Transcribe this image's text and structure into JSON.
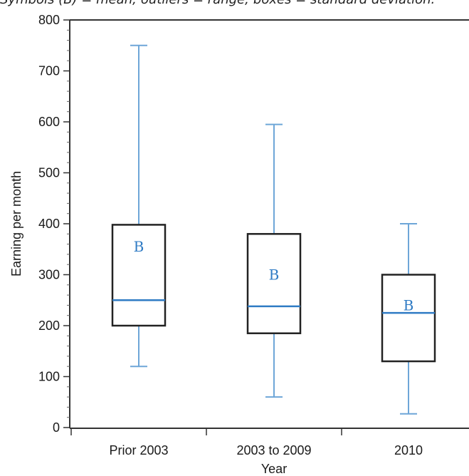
{
  "caption": "Symbols (B) = mean; outliers = range; boxes = standard deviation.",
  "colors": {
    "whisker": "#6ea6d8",
    "median": "#2f7bc4",
    "box": "#222222",
    "marker": "#2f7bc4"
  },
  "chart_data": {
    "type": "box",
    "xlabel": "Year",
    "ylabel": "Earning per month",
    "ylim": [
      0,
      800
    ],
    "yticks": [
      0,
      100,
      200,
      300,
      400,
      500,
      600,
      700,
      800
    ],
    "grid": false,
    "mean_symbol": "B",
    "categories": [
      "Prior 2003",
      "2003 to 2009",
      "2010"
    ],
    "boxes": [
      {
        "category": "Prior 2003",
        "min": 120,
        "q1": 200,
        "median": 250,
        "q3": 398,
        "max": 750,
        "mean": 355
      },
      {
        "category": "2003 to 2009",
        "min": 60,
        "q1": 185,
        "median": 238,
        "q3": 380,
        "max": 595,
        "mean": 300
      },
      {
        "category": "2010",
        "min": 27,
        "q1": 130,
        "median": 225,
        "q3": 300,
        "max": 400,
        "mean": 240
      }
    ]
  }
}
